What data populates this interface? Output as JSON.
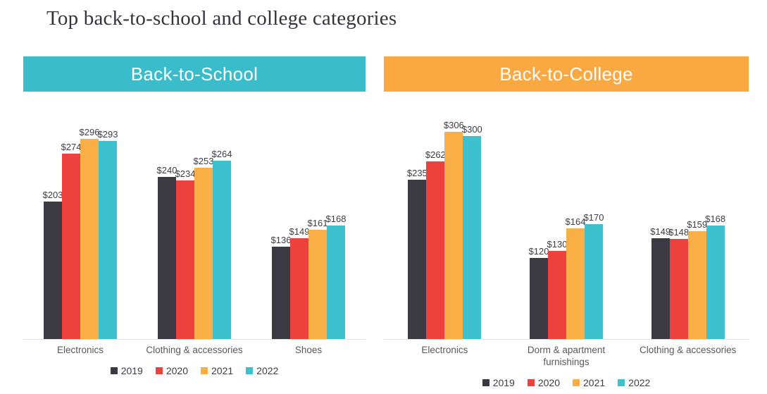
{
  "page": {
    "title": "Top back-to-school and college categories"
  },
  "chart_data": [
    {
      "type": "bar",
      "title": "Back-to-School",
      "banner_color": "#3bbccb",
      "categories": [
        "Electronics",
        "Clothing & accessories",
        "Shoes"
      ],
      "series": [
        {
          "name": "2019",
          "color": "#3b3a42",
          "values": [
            203,
            240,
            136
          ]
        },
        {
          "name": "2020",
          "color": "#ee403c",
          "values": [
            274,
            234,
            149
          ]
        },
        {
          "name": "2021",
          "color": "#f9ae46",
          "values": [
            296,
            253,
            161
          ]
        },
        {
          "name": "2022",
          "color": "#3ec1ce",
          "values": [
            293,
            264,
            168
          ]
        }
      ],
      "value_prefix": "$",
      "data_labels": true,
      "legend": [
        "2019",
        "2020",
        "2021",
        "2022"
      ],
      "legend_position": "bottom",
      "xlabel": "",
      "ylabel": "",
      "ylim": [
        0,
        330
      ],
      "grid": false
    },
    {
      "type": "bar",
      "title": "Back-to-College",
      "banner_color": "#f9a842",
      "categories": [
        "Electronics",
        "Dorm & apartment furnishings",
        "Clothing & accessories"
      ],
      "series": [
        {
          "name": "2019",
          "color": "#3b3a42",
          "values": [
            235,
            120,
            149
          ]
        },
        {
          "name": "2020",
          "color": "#ee403c",
          "values": [
            262,
            130,
            148
          ]
        },
        {
          "name": "2021",
          "color": "#f9ae46",
          "values": [
            306,
            164,
            159
          ]
        },
        {
          "name": "2022",
          "color": "#3ec1ce",
          "values": [
            300,
            170,
            168
          ]
        }
      ],
      "value_prefix": "$",
      "data_labels": true,
      "legend": [
        "2019",
        "2020",
        "2021",
        "2022"
      ],
      "legend_position": "bottom",
      "xlabel": "",
      "ylabel": "",
      "ylim": [
        0,
        330
      ],
      "grid": false
    }
  ]
}
